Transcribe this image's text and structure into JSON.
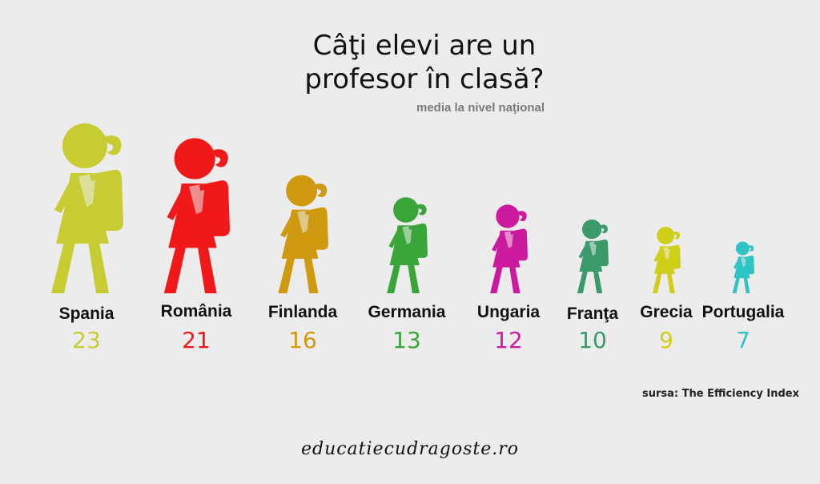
{
  "title_line1": "Câţi elevi are un",
  "title_line2": "profesor în clasă?",
  "subtitle": "media la nivel naţional",
  "source": "sursa: The Efficiency Index",
  "website": "educatiecudragoste.ro",
  "chart_data": {
    "type": "pictogram",
    "title": "Câţi elevi are un profesor în clasă?",
    "subtitle": "media la nivel naţional",
    "categories": [
      "Spania",
      "România",
      "Finlanda",
      "Germania",
      "Ungaria",
      "Franţa",
      "Grecia",
      "Portugalia"
    ],
    "values": [
      23,
      21,
      16,
      13,
      12,
      10,
      9,
      7
    ],
    "colors": [
      "#c8cc33",
      "#f01818",
      "#cf9a10",
      "#3aa63a",
      "#cc1a9e",
      "#3a9a6a",
      "#cfcf1a",
      "#2ec4c4"
    ],
    "icon": "student-with-backpack-icon"
  }
}
